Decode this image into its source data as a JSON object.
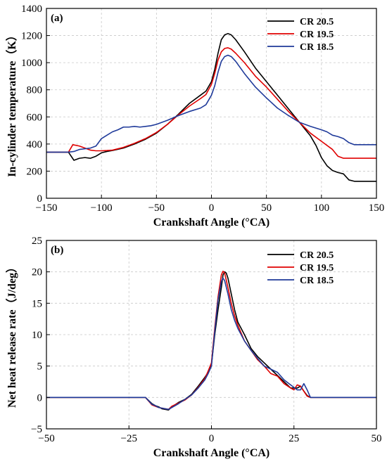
{
  "chart_data": [
    {
      "type": "line",
      "panel_label": "(a)",
      "xlabel": "Crankshaft Angle (°CA)",
      "ylabel": "In-cylinder temperature（K）",
      "xlim": [
        -150,
        150
      ],
      "ylim": [
        0,
        1400
      ],
      "xticks": [
        -150,
        -100,
        -50,
        0,
        50,
        100,
        150
      ],
      "yticks": [
        0,
        200,
        400,
        600,
        800,
        1000,
        1200,
        1400
      ],
      "grid": true,
      "legend_position": "top-right",
      "series": [
        {
          "name": "CR 20.5",
          "color": "#000000",
          "points": [
            [
              -150,
              340
            ],
            [
              -130,
              340
            ],
            [
              -125,
              280
            ],
            [
              -120,
              295
            ],
            [
              -115,
              300
            ],
            [
              -110,
              295
            ],
            [
              -105,
              310
            ],
            [
              -100,
              335
            ],
            [
              -95,
              345
            ],
            [
              -90,
              352
            ],
            [
              -80,
              370
            ],
            [
              -70,
              400
            ],
            [
              -60,
              435
            ],
            [
              -50,
              480
            ],
            [
              -40,
              545
            ],
            [
              -30,
              620
            ],
            [
              -20,
              700
            ],
            [
              -10,
              760
            ],
            [
              -5,
              790
            ],
            [
              0,
              860
            ],
            [
              3,
              950
            ],
            [
              6,
              1070
            ],
            [
              9,
              1170
            ],
            [
              12,
              1205
            ],
            [
              15,
              1215
            ],
            [
              18,
              1205
            ],
            [
              22,
              1170
            ],
            [
              30,
              1080
            ],
            [
              40,
              960
            ],
            [
              50,
              860
            ],
            [
              60,
              760
            ],
            [
              70,
              660
            ],
            [
              80,
              560
            ],
            [
              90,
              460
            ],
            [
              95,
              390
            ],
            [
              100,
              300
            ],
            [
              105,
              240
            ],
            [
              110,
              205
            ],
            [
              115,
              190
            ],
            [
              120,
              180
            ],
            [
              125,
              135
            ],
            [
              130,
              125
            ],
            [
              150,
              125
            ]
          ]
        },
        {
          "name": "CR 19.5",
          "color": "#e00000",
          "points": [
            [
              -150,
              340
            ],
            [
              -130,
              340
            ],
            [
              -126,
              395
            ],
            [
              -120,
              385
            ],
            [
              -115,
              370
            ],
            [
              -110,
              355
            ],
            [
              -105,
              350
            ],
            [
              -100,
              350
            ],
            [
              -95,
              352
            ],
            [
              -90,
              355
            ],
            [
              -80,
              375
            ],
            [
              -70,
              405
            ],
            [
              -60,
              440
            ],
            [
              -50,
              485
            ],
            [
              -40,
              545
            ],
            [
              -30,
              615
            ],
            [
              -20,
              680
            ],
            [
              -10,
              735
            ],
            [
              -5,
              765
            ],
            [
              0,
              840
            ],
            [
              3,
              920
            ],
            [
              6,
              1020
            ],
            [
              9,
              1080
            ],
            [
              12,
              1105
            ],
            [
              15,
              1110
            ],
            [
              18,
              1100
            ],
            [
              22,
              1070
            ],
            [
              30,
              1000
            ],
            [
              40,
              900
            ],
            [
              50,
              820
            ],
            [
              60,
              730
            ],
            [
              70,
              640
            ],
            [
              80,
              560
            ],
            [
              90,
              480
            ],
            [
              100,
              420
            ],
            [
              110,
              360
            ],
            [
              115,
              310
            ],
            [
              120,
              295
            ],
            [
              125,
              295
            ],
            [
              130,
              295
            ],
            [
              150,
              295
            ]
          ]
        },
        {
          "name": "CR 18.5",
          "color": "#1f3a9a",
          "points": [
            [
              -150,
              340
            ],
            [
              -130,
              340
            ],
            [
              -125,
              345
            ],
            [
              -120,
              360
            ],
            [
              -115,
              365
            ],
            [
              -110,
              370
            ],
            [
              -105,
              385
            ],
            [
              -100,
              440
            ],
            [
              -95,
              465
            ],
            [
              -90,
              490
            ],
            [
              -85,
              505
            ],
            [
              -80,
              525
            ],
            [
              -75,
              525
            ],
            [
              -70,
              530
            ],
            [
              -65,
              525
            ],
            [
              -60,
              530
            ],
            [
              -55,
              535
            ],
            [
              -50,
              545
            ],
            [
              -40,
              575
            ],
            [
              -30,
              610
            ],
            [
              -20,
              640
            ],
            [
              -10,
              665
            ],
            [
              -5,
              690
            ],
            [
              0,
              760
            ],
            [
              3,
              830
            ],
            [
              6,
              930
            ],
            [
              9,
              1010
            ],
            [
              12,
              1045
            ],
            [
              15,
              1055
            ],
            [
              18,
              1045
            ],
            [
              22,
              1010
            ],
            [
              30,
              920
            ],
            [
              40,
              820
            ],
            [
              50,
              740
            ],
            [
              60,
              665
            ],
            [
              70,
              610
            ],
            [
              80,
              560
            ],
            [
              90,
              530
            ],
            [
              100,
              505
            ],
            [
              105,
              490
            ],
            [
              110,
              465
            ],
            [
              115,
              455
            ],
            [
              120,
              440
            ],
            [
              125,
              410
            ],
            [
              130,
              395
            ],
            [
              150,
              395
            ]
          ]
        }
      ]
    },
    {
      "type": "line",
      "panel_label": "(b)",
      "xlabel": "Crankshaft Angle (°CA)",
      "ylabel": "Net heat release rate（J/deg）",
      "xlim": [
        -50,
        50
      ],
      "ylim": [
        -5,
        25
      ],
      "xticks": [
        -50,
        -25,
        0,
        25,
        50
      ],
      "yticks": [
        -5,
        0,
        5,
        10,
        15,
        20,
        25
      ],
      "grid": true,
      "legend_position": "top-right",
      "series": [
        {
          "name": "CR 20.5",
          "color": "#000000",
          "points": [
            [
              -50,
              0
            ],
            [
              -20,
              0
            ],
            [
              -18,
              -1
            ],
            [
              -17,
              -1.3
            ],
            [
              -16,
              -1.5
            ],
            [
              -15,
              -1.8
            ],
            [
              -14,
              -1.9
            ],
            [
              -13,
              -2
            ],
            [
              -12,
              -1.5
            ],
            [
              -10,
              -0.8
            ],
            [
              -8,
              -0.3
            ],
            [
              -6,
              0.5
            ],
            [
              -4,
              1.8
            ],
            [
              -2,
              3.2
            ],
            [
              -1,
              4
            ],
            [
              0,
              5.2
            ],
            [
              1,
              10
            ],
            [
              2,
              14
            ],
            [
              3,
              17.5
            ],
            [
              3.5,
              19.5
            ],
            [
              4,
              20
            ],
            [
              4.5,
              19.8
            ],
            [
              5,
              19
            ],
            [
              6,
              16.5
            ],
            [
              7,
              14
            ],
            [
              8,
              12
            ],
            [
              10,
              10
            ],
            [
              12,
              7.8
            ],
            [
              14,
              6.5
            ],
            [
              16,
              5.5
            ],
            [
              18,
              4.5
            ],
            [
              20,
              3.5
            ],
            [
              22,
              2.5
            ],
            [
              24,
              1.5
            ],
            [
              26,
              1.5
            ],
            [
              27,
              1.8
            ],
            [
              28,
              1
            ],
            [
              29,
              0.3
            ],
            [
              30,
              0
            ],
            [
              50,
              0
            ]
          ]
        },
        {
          "name": "CR 19.5",
          "color": "#e00000",
          "points": [
            [
              -50,
              0
            ],
            [
              -20,
              0
            ],
            [
              -18,
              -1.2
            ],
            [
              -17,
              -1.4
            ],
            [
              -16,
              -1.6
            ],
            [
              -15,
              -1.7
            ],
            [
              -14,
              -1.8
            ],
            [
              -13,
              -1.9
            ],
            [
              -12,
              -1.4
            ],
            [
              -10,
              -0.9
            ],
            [
              -8,
              -0.4
            ],
            [
              -6,
              0.4
            ],
            [
              -4,
              1.6
            ],
            [
              -2,
              3
            ],
            [
              -1,
              4.2
            ],
            [
              0,
              5.5
            ],
            [
              1,
              11
            ],
            [
              2,
              16
            ],
            [
              3,
              19.5
            ],
            [
              3.5,
              20.1
            ],
            [
              4,
              19.8
            ],
            [
              5,
              17.5
            ],
            [
              6,
              15
            ],
            [
              7,
              13
            ],
            [
              8,
              11.5
            ],
            [
              10,
              9
            ],
            [
              12,
              7.5
            ],
            [
              14,
              6
            ],
            [
              16,
              5
            ],
            [
              18,
              3.8
            ],
            [
              20,
              3.4
            ],
            [
              22,
              2.2
            ],
            [
              24,
              1.5
            ],
            [
              25,
              1.2
            ],
            [
              26,
              2
            ],
            [
              27,
              1.8
            ],
            [
              28,
              1
            ],
            [
              29,
              0.2
            ],
            [
              30,
              0
            ],
            [
              50,
              0
            ]
          ]
        },
        {
          "name": "CR 18.5",
          "color": "#1f3a9a",
          "points": [
            [
              -50,
              0
            ],
            [
              -20,
              0
            ],
            [
              -18,
              -1.1
            ],
            [
              -17,
              -1.3
            ],
            [
              -16,
              -1.6
            ],
            [
              -15,
              -1.7
            ],
            [
              -14,
              -1.8
            ],
            [
              -13,
              -1.9
            ],
            [
              -12,
              -1.6
            ],
            [
              -10,
              -1
            ],
            [
              -8,
              -0.3
            ],
            [
              -6,
              0.4
            ],
            [
              -4,
              1.5
            ],
            [
              -2,
              2.8
            ],
            [
              -1,
              3.8
            ],
            [
              0,
              5
            ],
            [
              1,
              10.5
            ],
            [
              2,
              15.5
            ],
            [
              3,
              18.5
            ],
            [
              3.5,
              19
            ],
            [
              4,
              18.6
            ],
            [
              5,
              16.5
            ],
            [
              6,
              14
            ],
            [
              7,
              12.3
            ],
            [
              8,
              11
            ],
            [
              10,
              9
            ],
            [
              12,
              7.5
            ],
            [
              14,
              6.2
            ],
            [
              16,
              5
            ],
            [
              18,
              4.5
            ],
            [
              20,
              4
            ],
            [
              22,
              2.8
            ],
            [
              24,
              2
            ],
            [
              25,
              1.6
            ],
            [
              26,
              1.2
            ],
            [
              27,
              1.2
            ],
            [
              28,
              2.2
            ],
            [
              29,
              1.2
            ],
            [
              30,
              0
            ],
            [
              50,
              0
            ]
          ]
        }
      ]
    }
  ]
}
